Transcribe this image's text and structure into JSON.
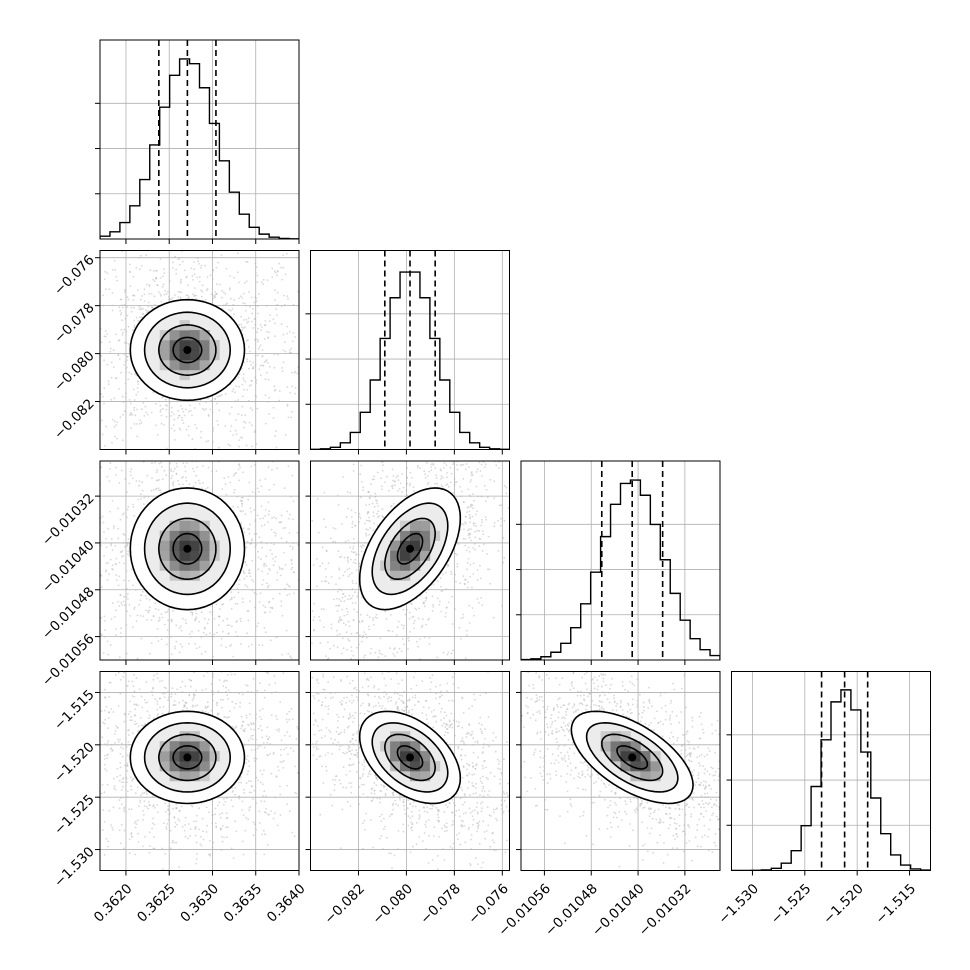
{
  "chart_data": {
    "type": "corner",
    "title": "",
    "grid": true,
    "parameters": [
      {
        "mean": 0.36271,
        "sd": 0.00033,
        "range": [
          0.3617,
          0.364
        ],
        "ticks": [
          0.362,
          0.3625,
          0.363,
          0.3635,
          0.364
        ],
        "tick_labels": [
          "0.3620",
          "0.3625",
          "0.3630",
          "0.3635",
          "0.3640"
        ],
        "quantiles": [
          0.36238,
          0.36271,
          0.36304
        ]
      },
      {
        "mean": -0.07985,
        "sd": 0.00105,
        "range": [
          -0.084,
          -0.0757
        ],
        "ticks": [
          -0.082,
          -0.08,
          -0.078,
          -0.076
        ],
        "tick_labels": [
          "−0.082",
          "−0.080",
          "−0.078",
          "−0.076"
        ],
        "quantiles": [
          -0.0809,
          -0.07985,
          -0.0788
        ]
      },
      {
        "mean": -0.01041,
        "sd": 5.2e-05,
        "range": [
          -0.0106,
          -0.01026
        ],
        "ticks": [
          -0.01056,
          -0.01048,
          -0.0104,
          -0.01032
        ],
        "tick_labels": [
          "−0.01056",
          "−0.01048",
          "−0.01040",
          "−0.01032"
        ],
        "quantiles": [
          -0.010462,
          -0.01041,
          -0.010358
        ]
      },
      {
        "mean": -1.5212,
        "sd": 0.0022,
        "range": [
          -1.532,
          -1.513
        ],
        "ticks": [
          -1.53,
          -1.525,
          -1.52,
          -1.515
        ],
        "tick_labels": [
          "−1.530",
          "−1.525",
          "−1.520",
          "−1.515"
        ],
        "quantiles": [
          -1.5234,
          -1.5212,
          -1.519
        ]
      }
    ],
    "correlations": [
      {
        "pair": [
          1,
          0
        ],
        "rho": 0.0
      },
      {
        "pair": [
          2,
          0
        ],
        "rho": 0.0
      },
      {
        "pair": [
          2,
          1
        ],
        "rho": 0.5
      },
      {
        "pair": [
          3,
          0
        ],
        "rho": 0.0
      },
      {
        "pair": [
          3,
          1
        ],
        "rho": -0.45
      },
      {
        "pair": [
          3,
          2
        ],
        "rho": -0.6
      }
    ],
    "contour_levels_sigma": [
      0.5,
      1.0,
      1.5,
      2.0
    ],
    "n_bins": 20
  }
}
